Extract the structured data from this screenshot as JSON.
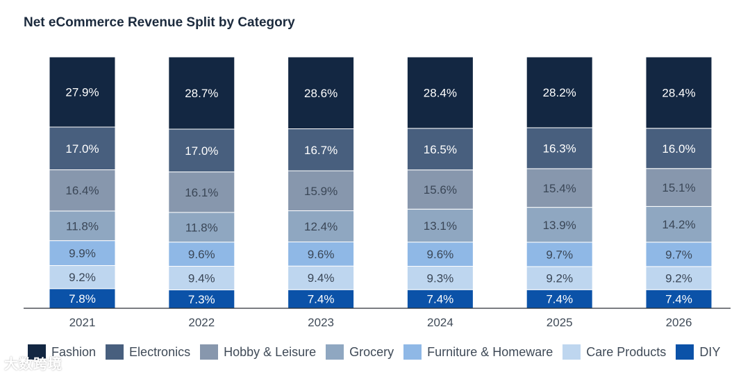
{
  "chart_data": {
    "type": "bar",
    "stacked": true,
    "title": "Net eCommerce Revenue Split by Category",
    "categories": [
      "2021",
      "2022",
      "2023",
      "2024",
      "2025",
      "2026"
    ],
    "ylim": [
      0,
      100
    ],
    "series": [
      {
        "name": "DIY",
        "color": "#0b52a8",
        "values": [
          7.8,
          7.3,
          7.4,
          7.4,
          7.4,
          7.4
        ],
        "labels": [
          "7.8%",
          "7.3%",
          "7.4%",
          "7.4%",
          "7.4%",
          "7.4%"
        ]
      },
      {
        "name": "Care Products",
        "color": "#bed6ef",
        "values": [
          9.2,
          9.4,
          9.4,
          9.3,
          9.2,
          9.2
        ],
        "labels": [
          "9.2%",
          "9.4%",
          "9.4%",
          "9.3%",
          "9.2%",
          "9.2%"
        ]
      },
      {
        "name": "Furniture & Homeware",
        "color": "#8fb8e6",
        "values": [
          9.9,
          9.6,
          9.6,
          9.6,
          9.7,
          9.7
        ],
        "labels": [
          "9.9%",
          "9.6%",
          "9.6%",
          "9.6%",
          "9.7%",
          "9.7%"
        ]
      },
      {
        "name": "Grocery",
        "color": "#8fa7c1",
        "values": [
          11.8,
          11.8,
          12.4,
          13.1,
          13.9,
          14.2
        ],
        "labels": [
          "11.8%",
          "11.8%",
          "12.4%",
          "13.1%",
          "13.9%",
          "14.2%"
        ]
      },
      {
        "name": "Hobby & Leisure",
        "color": "#8797ad",
        "values": [
          16.4,
          16.1,
          15.9,
          15.6,
          15.4,
          15.1
        ],
        "labels": [
          "16.4%",
          "16.1%",
          "15.9%",
          "15.6%",
          "15.4%",
          "15.1%"
        ]
      },
      {
        "name": "Electronics",
        "color": "#485f7e",
        "values": [
          17.0,
          17.0,
          16.7,
          16.5,
          16.3,
          16.0
        ],
        "labels": [
          "17.0%",
          "17.0%",
          "16.7%",
          "16.5%",
          "16.3%",
          "16.0%"
        ]
      },
      {
        "name": "Fashion",
        "color": "#132742",
        "values": [
          27.9,
          28.7,
          28.6,
          28.4,
          28.2,
          28.4
        ],
        "labels": [
          "27.9%",
          "28.7%",
          "28.6%",
          "28.4%",
          "28.2%",
          "28.4%"
        ]
      }
    ],
    "legend_order": [
      "Fashion",
      "Electronics",
      "Hobby & Leisure",
      "Grocery",
      "Furniture & Homeware",
      "Care Products",
      "DIY"
    ],
    "legend_position": "bottom"
  },
  "watermark": "大数跨境"
}
